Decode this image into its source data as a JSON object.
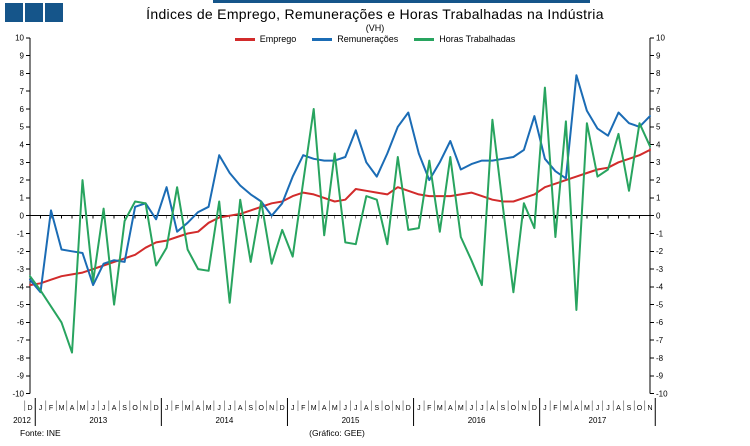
{
  "page": {
    "title": "Índices de Emprego, Remunerações e Horas Trabalhadas na Indústria",
    "subtitle": "(VH)",
    "source_left": "Fonte: INE",
    "source_center": "(Gráfico: GEE)"
  },
  "logo": {
    "color": "#15558a",
    "square_count": 3
  },
  "colors": {
    "navy": "#15558a",
    "axis": "#000000"
  },
  "legend": [
    {
      "label": "Emprego",
      "color": "#d22b2b"
    },
    {
      "label": "Remunerações",
      "color": "#1b6cb5"
    },
    {
      "label": "Horas Trabalhadas",
      "color": "#28a45f"
    }
  ],
  "chart_data": {
    "type": "line",
    "title": "Índices de Emprego, Remunerações e Horas Trabalhadas na Indústria",
    "subtitle": "(VH)",
    "ylim": [
      -10,
      10
    ],
    "ytick_step": 1,
    "grid": false,
    "legend_position": "top-center",
    "x_months": [
      "D",
      "J",
      "F",
      "M",
      "A",
      "M",
      "J",
      "J",
      "A",
      "S",
      "O",
      "N",
      "D",
      "J",
      "F",
      "M",
      "A",
      "M",
      "J",
      "J",
      "A",
      "S",
      "O",
      "N",
      "D",
      "J",
      "F",
      "M",
      "A",
      "M",
      "J",
      "J",
      "A",
      "S",
      "O",
      "N",
      "D",
      "J",
      "F",
      "M",
      "A",
      "M",
      "J",
      "J",
      "A",
      "S",
      "O",
      "N",
      "D",
      "J",
      "F",
      "M",
      "A",
      "M",
      "J",
      "J",
      "A",
      "S",
      "O",
      "N"
    ],
    "years": [
      {
        "label": "2012",
        "start": 0,
        "count": 1
      },
      {
        "label": "2013",
        "start": 1,
        "count": 12
      },
      {
        "label": "2014",
        "start": 13,
        "count": 12
      },
      {
        "label": "2015",
        "start": 25,
        "count": 12
      },
      {
        "label": "2016",
        "start": 37,
        "count": 12
      },
      {
        "label": "2017",
        "start": 49,
        "count": 11
      }
    ],
    "series": [
      {
        "name": "Emprego",
        "color": "#d22b2b",
        "values": [
          -3.9,
          -3.8,
          -3.6,
          -3.4,
          -3.3,
          -3.2,
          -3.0,
          -2.8,
          -2.6,
          -2.4,
          -2.2,
          -1.8,
          -1.5,
          -1.4,
          -1.2,
          -1.0,
          -0.9,
          -0.4,
          -0.1,
          0.0,
          0.1,
          0.3,
          0.5,
          0.7,
          0.8,
          1.1,
          1.3,
          1.2,
          1.0,
          0.8,
          0.9,
          1.5,
          1.4,
          1.3,
          1.2,
          1.6,
          1.4,
          1.2,
          1.1,
          1.1,
          1.1,
          1.2,
          1.3,
          1.1,
          0.9,
          0.8,
          0.8,
          1.0,
          1.2,
          1.6,
          1.8,
          2.0,
          2.2,
          2.4,
          2.6,
          2.7,
          3.0,
          3.2,
          3.4,
          3.7
        ]
      },
      {
        "name": "Remunerações",
        "color": "#1b6cb5",
        "values": [
          -3.6,
          -4.3,
          0.3,
          -1.9,
          -2.0,
          -2.1,
          -3.9,
          -2.7,
          -2.5,
          -2.6,
          0.5,
          0.7,
          -0.2,
          1.6,
          -0.9,
          -0.4,
          0.2,
          0.5,
          3.4,
          2.4,
          1.7,
          1.2,
          0.8,
          0.0,
          0.7,
          2.2,
          3.4,
          3.2,
          3.1,
          3.1,
          3.3,
          4.8,
          3.0,
          2.2,
          3.5,
          5.0,
          5.8,
          3.5,
          2.0,
          3.0,
          4.2,
          2.6,
          2.9,
          3.1,
          3.1,
          3.2,
          3.3,
          3.7,
          5.6,
          3.2,
          2.5,
          2.1,
          7.9,
          5.9,
          4.9,
          4.5,
          5.8,
          5.2,
          5.0,
          5.6
        ]
      },
      {
        "name": "Horas Trabalhadas",
        "color": "#28a45f",
        "values": [
          -3.4,
          -4.2,
          -5.1,
          -6.0,
          -7.7,
          2.0,
          -3.7,
          0.4,
          -5.0,
          -0.3,
          0.8,
          0.7,
          -2.8,
          -1.8,
          1.6,
          -1.9,
          -3.0,
          -3.1,
          0.8,
          -4.9,
          0.9,
          -2.6,
          0.8,
          -2.7,
          -0.8,
          -2.3,
          1.9,
          6.0,
          -1.1,
          3.5,
          -1.5,
          -1.6,
          1.1,
          0.9,
          -1.6,
          3.3,
          -0.8,
          -0.7,
          3.1,
          -0.9,
          3.3,
          -1.2,
          -2.5,
          -3.9,
          5.4,
          0.5,
          -4.3,
          0.7,
          -0.7,
          7.2,
          -1.2,
          5.3,
          -5.3,
          5.2,
          2.2,
          2.6,
          4.6,
          1.4,
          5.2,
          3.9
        ]
      }
    ]
  }
}
